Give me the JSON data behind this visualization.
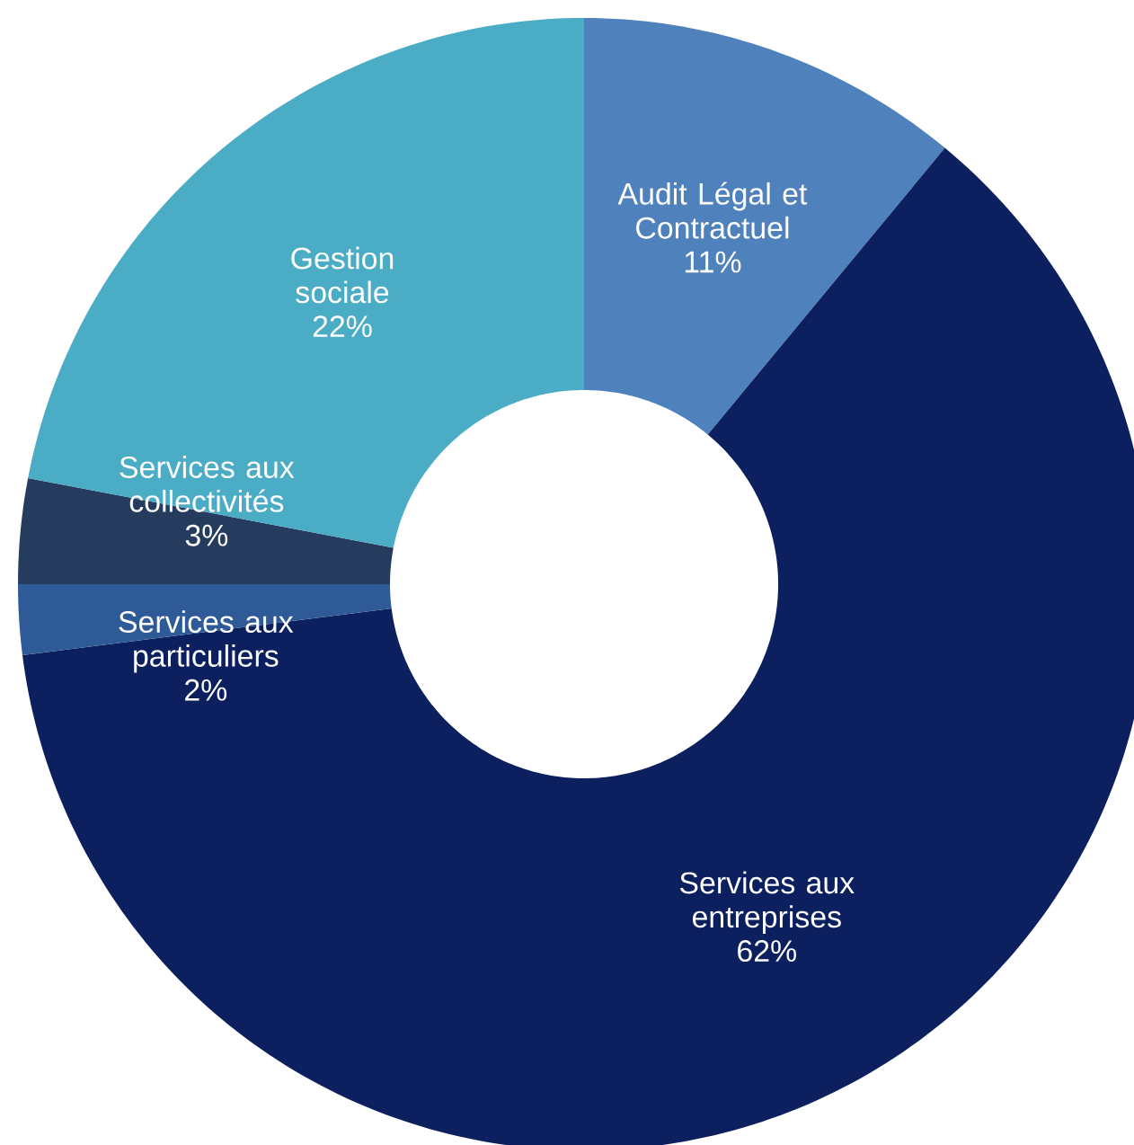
{
  "chart_data": {
    "type": "donut",
    "categories": [
      "Audit Légal et Contractuel",
      "Services aux entreprises",
      "Services aux particuliers",
      "Services aux collectivités",
      "Gestion sociale"
    ],
    "values": [
      11,
      62,
      2,
      3,
      22
    ],
    "value_labels": [
      "11%",
      "62%",
      "2%",
      "3%",
      "22%"
    ],
    "colors": [
      "#4f81bd",
      "#0c2060",
      "#2e5b97",
      "#253c5e",
      "#4bacc6"
    ]
  }
}
